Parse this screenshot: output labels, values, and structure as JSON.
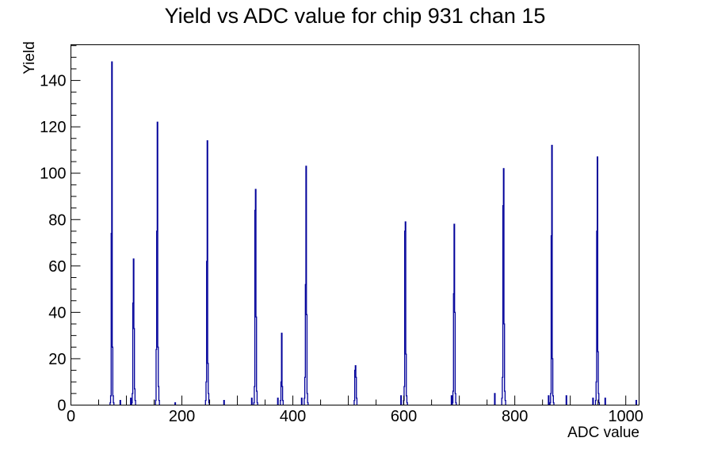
{
  "title": "Yield vs ADC value for chip 931 chan 15",
  "colors": {
    "line": "#00009a",
    "axis": "#000000",
    "background": "#ffffff",
    "text": "#000000"
  },
  "chart_data": {
    "type": "bar",
    "title": "Yield vs ADC value for chip 931 chan 15",
    "xlabel": "ADC value",
    "ylabel": "Yield",
    "xlim": [
      0,
      1024
    ],
    "ylim": [
      0,
      155.4
    ],
    "grid": false,
    "legend": false,
    "x_tick_labels": [
      0,
      200,
      400,
      600,
      800,
      1000
    ],
    "x_minor_tick_step": 50,
    "x_major_tick_step": 100,
    "y_tick_labels": [
      0,
      20,
      40,
      60,
      80,
      100,
      120,
      140
    ],
    "y_minor_tick_step": 5,
    "y_major_tick_step": 20,
    "peaks": [
      {
        "adc": 74,
        "yield": 148,
        "bins": [
          [
            -3,
            1
          ],
          [
            -2,
            4
          ],
          [
            -1,
            74
          ],
          [
            0,
            148
          ],
          [
            1,
            25
          ],
          [
            2,
            4
          ],
          [
            3,
            1
          ]
        ]
      },
      {
        "adc": 113,
        "yield": 63,
        "bins": [
          [
            -3,
            1
          ],
          [
            -2,
            5
          ],
          [
            -1,
            44
          ],
          [
            0,
            63
          ],
          [
            1,
            33
          ],
          [
            2,
            7
          ],
          [
            3,
            2
          ]
        ]
      },
      {
        "adc": 156,
        "yield": 122,
        "bins": [
          [
            -3,
            2
          ],
          [
            -2,
            24
          ],
          [
            -1,
            75
          ],
          [
            0,
            122
          ],
          [
            1,
            25
          ],
          [
            2,
            8
          ],
          [
            3,
            2
          ]
        ]
      },
      {
        "adc": 246,
        "yield": 114,
        "bins": [
          [
            -3,
            2
          ],
          [
            -2,
            10
          ],
          [
            -1,
            62
          ],
          [
            0,
            114
          ],
          [
            1,
            18
          ],
          [
            2,
            5
          ],
          [
            3,
            1
          ]
        ]
      },
      {
        "adc": 333,
        "yield": 93,
        "bins": [
          [
            -3,
            1
          ],
          [
            -2,
            8
          ],
          [
            -1,
            84
          ],
          [
            0,
            93
          ],
          [
            1,
            38
          ],
          [
            2,
            6
          ],
          [
            3,
            1
          ]
        ]
      },
      {
        "adc": 380,
        "yield": 31,
        "bins": [
          [
            -2,
            2
          ],
          [
            -1,
            10
          ],
          [
            0,
            31
          ],
          [
            1,
            8
          ],
          [
            2,
            2
          ]
        ]
      },
      {
        "adc": 424,
        "yield": 103,
        "bins": [
          [
            -3,
            3
          ],
          [
            -2,
            12
          ],
          [
            -1,
            52
          ],
          [
            0,
            103
          ],
          [
            1,
            39
          ],
          [
            2,
            5
          ],
          [
            3,
            1
          ]
        ]
      },
      {
        "adc": 513,
        "yield": 17,
        "bins": [
          [
            -2,
            2
          ],
          [
            -1,
            15
          ],
          [
            0,
            17
          ],
          [
            1,
            12
          ],
          [
            2,
            3
          ]
        ]
      },
      {
        "adc": 603,
        "yield": 79,
        "bins": [
          [
            -3,
            2
          ],
          [
            -2,
            8
          ],
          [
            -1,
            75
          ],
          [
            0,
            79
          ],
          [
            1,
            22
          ],
          [
            2,
            4
          ],
          [
            3,
            1
          ]
        ]
      },
      {
        "adc": 691,
        "yield": 78,
        "bins": [
          [
            -3,
            1
          ],
          [
            -2,
            6
          ],
          [
            -1,
            48
          ],
          [
            0,
            78
          ],
          [
            1,
            40
          ],
          [
            2,
            5
          ],
          [
            3,
            1
          ]
        ]
      },
      {
        "adc": 780,
        "yield": 102,
        "bins": [
          [
            -3,
            3
          ],
          [
            -2,
            12
          ],
          [
            -1,
            86
          ],
          [
            0,
            102
          ],
          [
            1,
            35
          ],
          [
            2,
            6
          ],
          [
            3,
            2
          ]
        ]
      },
      {
        "adc": 867,
        "yield": 112,
        "bins": [
          [
            -3,
            1
          ],
          [
            -2,
            5
          ],
          [
            -1,
            73
          ],
          [
            0,
            112
          ],
          [
            1,
            20
          ],
          [
            2,
            4
          ],
          [
            3,
            1
          ]
        ]
      },
      {
        "adc": 949,
        "yield": 107,
        "bins": [
          [
            -3,
            2
          ],
          [
            -2,
            10
          ],
          [
            -1,
            75
          ],
          [
            0,
            107
          ],
          [
            1,
            23
          ],
          [
            2,
            5
          ],
          [
            3,
            1
          ]
        ]
      }
    ],
    "noise_bins": [
      [
        89,
        2
      ],
      [
        108,
        3
      ],
      [
        188,
        1
      ],
      [
        276,
        2
      ],
      [
        326,
        3
      ],
      [
        373,
        3
      ],
      [
        416,
        3
      ],
      [
        595,
        4
      ],
      [
        686,
        4
      ],
      [
        764,
        5
      ],
      [
        861,
        4
      ],
      [
        893,
        4
      ],
      [
        941,
        3
      ],
      [
        963,
        3
      ],
      [
        1019,
        2
      ]
    ]
  }
}
